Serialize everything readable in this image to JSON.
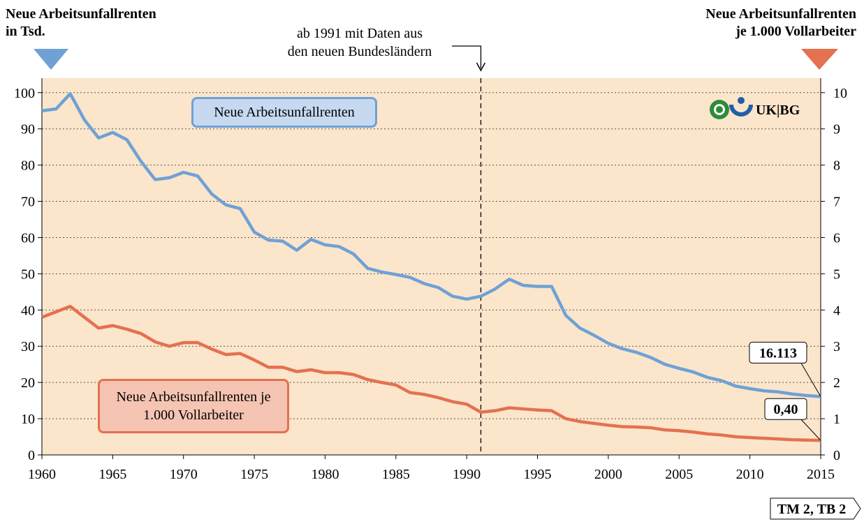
{
  "chart_data": {
    "type": "line",
    "ylabel_lines": [
      "Neue Arbeitsunfallrenten",
      "in Tsd."
    ],
    "y2label_lines": [
      "Neue Arbeitsunfallrenten",
      "je 1.000 Vollarbeiter"
    ],
    "annotation": {
      "lines": [
        "ab 1991 mit Daten aus",
        "den neuen Bundesländern"
      ],
      "x": 1991
    },
    "logo_text": "UK|BG",
    "footer": "TM 2, TB 2",
    "x": [
      1960,
      1961,
      1962,
      1963,
      1964,
      1965,
      1966,
      1967,
      1968,
      1969,
      1970,
      1971,
      1972,
      1973,
      1974,
      1975,
      1976,
      1977,
      1978,
      1979,
      1980,
      1981,
      1982,
      1983,
      1984,
      1985,
      1986,
      1987,
      1988,
      1989,
      1990,
      1991,
      1992,
      1993,
      1994,
      1995,
      1996,
      1997,
      1998,
      1999,
      2000,
      2001,
      2002,
      2003,
      2004,
      2005,
      2006,
      2007,
      2008,
      2009,
      2010,
      2011,
      2012,
      2013,
      2014,
      2015
    ],
    "xlim": [
      1960,
      2015
    ],
    "xticks": [
      1960,
      1965,
      1970,
      1975,
      1980,
      1985,
      1990,
      1995,
      2000,
      2005,
      2010,
      2015
    ],
    "ylim": [
      0,
      104
    ],
    "yticks": [
      0,
      10,
      20,
      30,
      40,
      50,
      60,
      70,
      80,
      90,
      100
    ],
    "y2lim": [
      0,
      10.4
    ],
    "y2ticks": [
      0,
      1,
      2,
      3,
      4,
      5,
      6,
      7,
      8,
      9,
      10
    ],
    "grid": true,
    "series": [
      {
        "name": "Neue Arbeitsunfallrenten",
        "color": "#6fa1d5",
        "axis": "y",
        "values": [
          95,
          95.5,
          99.7,
          92.5,
          87.5,
          89,
          87,
          81,
          76,
          76.5,
          78,
          77,
          72,
          69,
          68,
          61.5,
          59.3,
          59,
          56.5,
          59.5,
          58,
          57.5,
          55.5,
          51.5,
          50.5,
          49.8,
          49,
          47.3,
          46.2,
          43.8,
          43,
          43.8,
          45.8,
          48.5,
          46.8,
          46.5,
          46.5,
          38.5,
          35,
          33,
          30.8,
          29.3,
          28.3,
          26.9,
          25,
          23.9,
          22.9,
          21.4,
          20.5,
          19,
          18.3,
          17.7,
          17.4,
          16.8,
          16.4,
          16.113
        ],
        "value_labels": [
          null,
          null,
          null,
          null,
          null,
          null,
          null,
          null,
          null,
          null,
          null,
          null,
          null,
          null,
          null,
          null,
          null,
          null,
          null,
          null,
          null,
          null,
          null,
          null,
          null,
          null,
          null,
          null,
          null,
          null,
          null,
          null,
          null,
          null,
          null,
          null,
          null,
          null,
          null,
          null,
          null,
          null,
          null,
          null,
          null,
          null,
          null,
          null,
          null,
          null,
          null,
          null,
          null,
          null,
          null,
          "16.113"
        ]
      },
      {
        "name": "Neue Arbeitsunfallrenten je 1.000 Vollarbeiter",
        "color": "#e4714f",
        "axis": "y2",
        "values": [
          3.8,
          3.95,
          4.1,
          3.8,
          3.5,
          3.57,
          3.47,
          3.35,
          3.12,
          3.0,
          3.1,
          3.1,
          2.92,
          2.77,
          2.8,
          2.62,
          2.42,
          2.42,
          2.3,
          2.35,
          2.27,
          2.27,
          2.22,
          2.08,
          2.0,
          1.93,
          1.72,
          1.67,
          1.58,
          1.47,
          1.4,
          1.18,
          1.22,
          1.3,
          1.27,
          1.24,
          1.22,
          1.0,
          0.92,
          0.87,
          0.82,
          0.78,
          0.77,
          0.75,
          0.69,
          0.67,
          0.63,
          0.58,
          0.55,
          0.5,
          0.48,
          0.46,
          0.44,
          0.42,
          0.41,
          0.4
        ],
        "value_labels": [
          null,
          null,
          null,
          null,
          null,
          null,
          null,
          null,
          null,
          null,
          null,
          null,
          null,
          null,
          null,
          null,
          null,
          null,
          null,
          null,
          null,
          null,
          null,
          null,
          null,
          null,
          null,
          null,
          null,
          null,
          null,
          null,
          null,
          null,
          null,
          null,
          null,
          null,
          null,
          null,
          null,
          null,
          null,
          null,
          null,
          null,
          null,
          null,
          null,
          null,
          null,
          null,
          null,
          null,
          null,
          "0,40"
        ]
      }
    ]
  }
}
